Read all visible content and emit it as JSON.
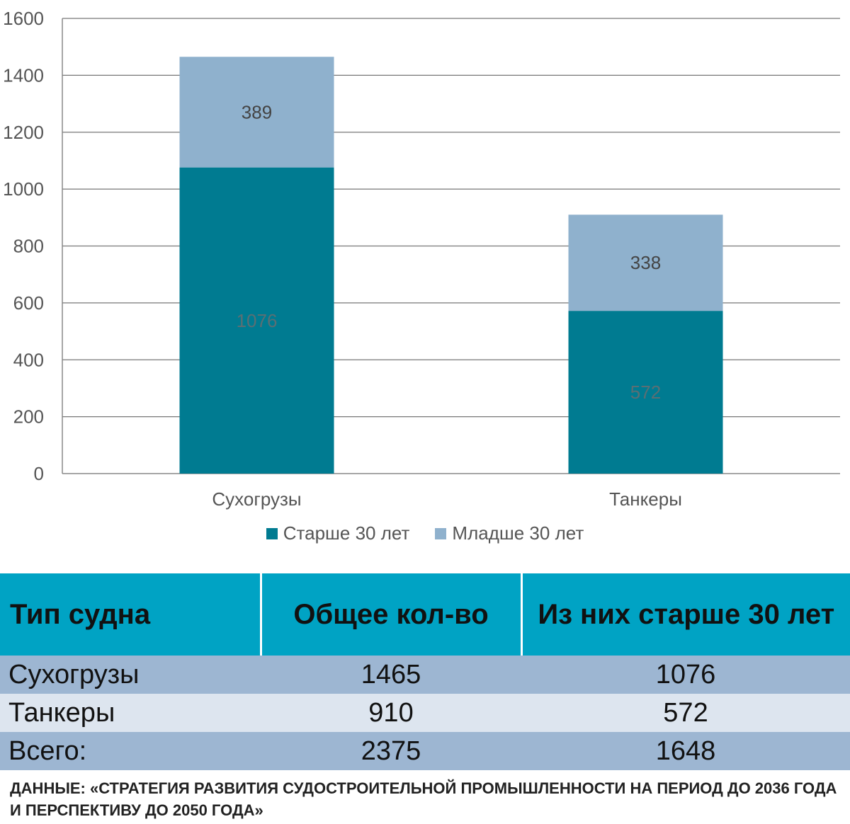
{
  "chart_data": {
    "type": "bar",
    "stacked": true,
    "categories": [
      "Сухогрузы",
      "Танкеры"
    ],
    "series": [
      {
        "name": "Старше 30 лет",
        "values": [
          1076,
          572
        ],
        "color": "#007b91",
        "label_color": "#5a6f74"
      },
      {
        "name": "Младше 30 лет",
        "values": [
          389,
          338
        ],
        "color": "#8fb1cd",
        "label_color": "#444444"
      }
    ],
    "ylim": [
      0,
      1600
    ],
    "yticks": [
      0,
      200,
      400,
      600,
      800,
      1000,
      1200,
      1400,
      1600
    ],
    "grid": true,
    "legend_position": "bottom"
  },
  "table": {
    "headers": [
      "Тип судна",
      "Общее кол-во",
      "Из них старше 30 лет"
    ],
    "rows": [
      [
        "Сухогрузы",
        "1465",
        "1076"
      ],
      [
        "Танкеры",
        "910",
        "572"
      ],
      [
        "Всего:",
        "2375",
        "1648"
      ]
    ],
    "header_color": "#00a3c4"
  },
  "source_note": "ДАННЫЕ: «СТРАТЕГИЯ РАЗВИТИЯ СУДОСТРОИТЕЛЬНОЙ ПРОМЫШЛЕННОСТИ НА ПЕРИОД ДО 2036 ГОДА И ПЕРСПЕКТИВУ ДО 2050 ГОДА»"
}
